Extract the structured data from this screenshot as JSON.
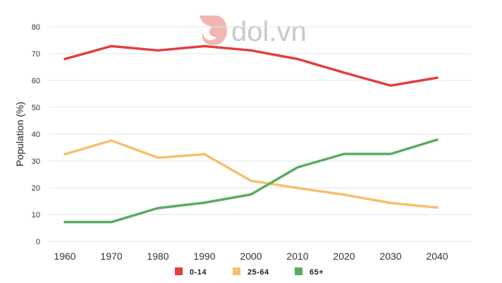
{
  "watermark": {
    "text": "dol.vn"
  },
  "chart_data": {
    "type": "line",
    "ylabel": "Population (%)",
    "xlabel": "",
    "x": [
      "1960",
      "1970",
      "1980",
      "1990",
      "2000",
      "2010",
      "2020",
      "2030",
      "2040"
    ],
    "ylim": [
      0,
      80
    ],
    "yticks": [
      0,
      10,
      20,
      30,
      40,
      50,
      60,
      70,
      80
    ],
    "grid": true,
    "legend_position": "bottom",
    "series": [
      {
        "name": "0-14",
        "color": "#e0403e",
        "values": [
          68,
          72.8,
          71.2,
          72.8,
          71.2,
          68,
          62.9,
          58.1,
          61
        ]
      },
      {
        "name": "25-64",
        "color": "#f5c06f",
        "values": [
          32.5,
          37.6,
          31.2,
          32.5,
          22.6,
          19.9,
          17.4,
          14.3,
          12.6
        ]
      },
      {
        "name": "65+",
        "color": "#5aaa62",
        "values": [
          7.2,
          7.2,
          12.4,
          14.4,
          17.5,
          27.6,
          32.6,
          32.6,
          37.9
        ]
      }
    ]
  }
}
